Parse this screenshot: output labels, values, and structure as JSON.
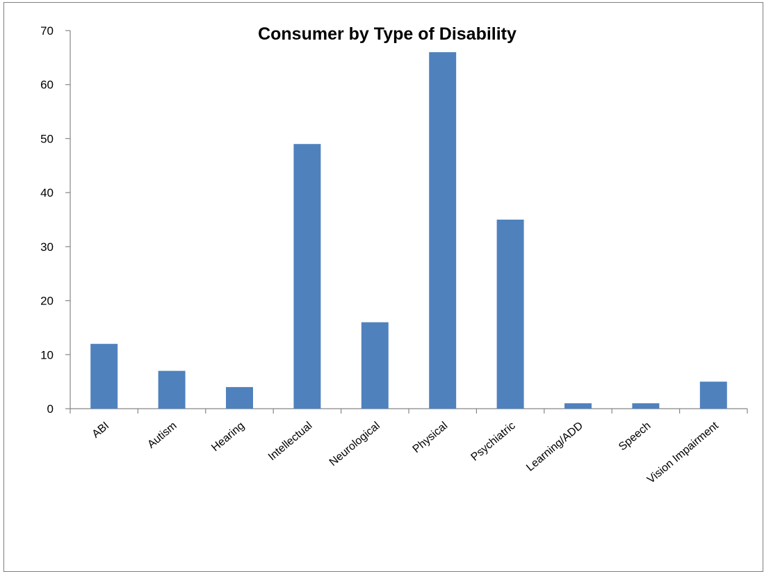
{
  "chart_data": {
    "type": "bar",
    "title": "Consumer by Type of Disability",
    "xlabel": "",
    "ylabel": "",
    "categories": [
      "ABI",
      "Autism",
      "Hearing",
      "Intellectual",
      "Neurological",
      "Physical",
      "Psychiatric",
      "Learning/ADD",
      "Speech",
      "Vision Impairment"
    ],
    "values": [
      12,
      7,
      4,
      49,
      16,
      66,
      35,
      1,
      1,
      5
    ],
    "ylim": [
      0,
      70
    ],
    "yticks": [
      0,
      10,
      20,
      30,
      40,
      50,
      60,
      70
    ],
    "grid": false,
    "legend": "none",
    "bar_color": "#4f81bd",
    "axis_color": "#868686"
  }
}
